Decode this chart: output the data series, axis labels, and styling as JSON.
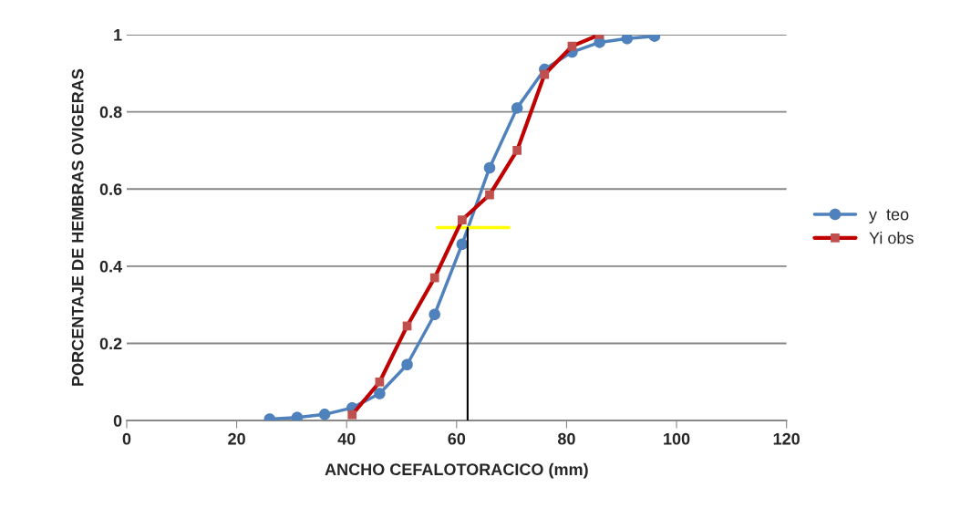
{
  "chart_data": {
    "type": "line",
    "xlabel": "ANCHO CEFALOTORACICO (mm)",
    "ylabel": "PORCENTAJE DE HEMBRAS OVIGERAS",
    "xlim": [
      0,
      120
    ],
    "xticks": [
      0,
      20,
      40,
      60,
      80,
      100,
      120
    ],
    "ylim": [
      0,
      1
    ],
    "yticks": [
      0,
      0.2,
      0.4,
      0.6,
      0.8,
      1
    ],
    "grid": "y",
    "legend": "right",
    "series": [
      {
        "name": "y  teo",
        "color": "#4f81bd",
        "marker": "circle",
        "x": [
          26,
          31,
          36,
          41,
          46,
          51,
          56,
          61,
          66,
          71,
          76,
          81,
          86,
          91,
          96
        ],
        "values": [
          0.004,
          0.008,
          0.016,
          0.033,
          0.07,
          0.145,
          0.275,
          0.457,
          0.655,
          0.81,
          0.91,
          0.955,
          0.98,
          0.99,
          0.996
        ]
      },
      {
        "name": "Yi obs",
        "color": "#c00000",
        "marker": "square",
        "x": [
          41,
          46,
          51,
          56,
          61,
          66,
          71,
          76,
          81,
          86
        ],
        "values": [
          0.015,
          0.1,
          0.245,
          0.37,
          0.52,
          0.585,
          0.7,
          0.897,
          0.97,
          1.0
        ]
      },
      {
        "color": "#ffff00",
        "marker": "none",
        "x": [
          56.5,
          69.5
        ],
        "values": [
          0.5,
          0.5
        ]
      },
      {
        "color": "#000000",
        "marker": "none",
        "x": [
          62,
          62
        ],
        "values": [
          0,
          0.5
        ]
      }
    ]
  }
}
